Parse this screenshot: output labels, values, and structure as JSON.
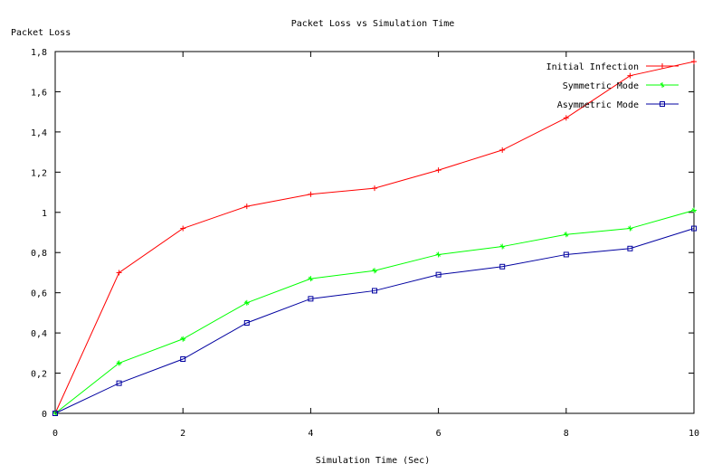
{
  "chart_data": {
    "type": "line",
    "title": "Packet Loss vs Simulation Time",
    "xlabel": "Simulation Time (Sec)",
    "ylabel": "Packet Loss",
    "xlim": [
      0,
      10
    ],
    "ylim": [
      0,
      1.8
    ],
    "x_ticks": [
      0,
      2,
      4,
      6,
      8,
      10
    ],
    "x_tick_labels": [
      "0",
      "2",
      "4",
      "6",
      "8",
      "10"
    ],
    "y_ticks": [
      0,
      0.2,
      0.4,
      0.6,
      0.8,
      1,
      1.2,
      1.4,
      1.6,
      1.8
    ],
    "y_tick_labels": [
      "0",
      "0,2",
      "0,4",
      "0,6",
      "0,8",
      "1",
      "1,2",
      "1,4",
      "1,6",
      "1,8"
    ],
    "grid": false,
    "legend_position": "top-right",
    "x": [
      0,
      1,
      2,
      3,
      4,
      5,
      6,
      7,
      8,
      9,
      10
    ],
    "series": [
      {
        "name": "Initial Infection",
        "color": "#ff0000",
        "marker": "plus",
        "values": [
          0,
          0.7,
          0.92,
          1.03,
          1.09,
          1.12,
          1.21,
          1.31,
          1.47,
          1.68,
          1.75
        ]
      },
      {
        "name": "Symmetric Mode",
        "color": "#00ff00",
        "marker": "cross",
        "values": [
          0,
          0.25,
          0.37,
          0.55,
          0.67,
          0.71,
          0.79,
          0.83,
          0.89,
          0.92,
          1.01
        ]
      },
      {
        "name": "Asymmetric Mode",
        "color": "#0000a0",
        "marker": "square",
        "values": [
          0,
          0.15,
          0.27,
          0.45,
          0.57,
          0.61,
          0.69,
          0.73,
          0.79,
          0.82,
          0.92
        ]
      }
    ]
  }
}
